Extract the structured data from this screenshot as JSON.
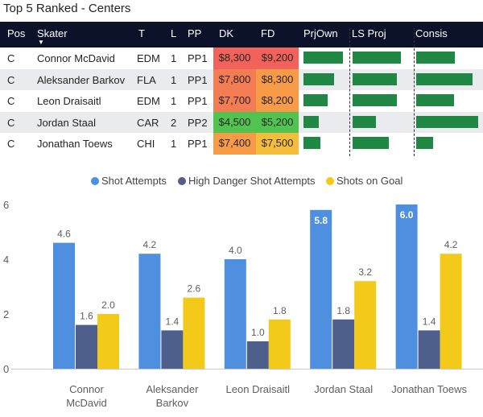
{
  "title": "Top 5 Ranked - Centers",
  "headers": {
    "pos": "Pos",
    "skater": "Skater",
    "team": "T",
    "line": "L",
    "pp": "PP",
    "dk": "DK",
    "fd": "FD",
    "prjown": "PrjOwn",
    "lsproj": "LS Proj",
    "consis": "Consis"
  },
  "rows": [
    {
      "pos": "C",
      "skater": "Connor McDavid",
      "team": "EDM",
      "line": "1",
      "pp": "PP1",
      "dk": "$8,300",
      "fd": "$9,200",
      "dk_color": "#f2625a",
      "fd_color": "#f2625a",
      "prjown": 0.85,
      "lsproj": 0.85,
      "consis": 0.62
    },
    {
      "pos": "C",
      "skater": "Aleksander Barkov",
      "team": "FLA",
      "line": "1",
      "pp": "PP1",
      "dk": "$7,800",
      "fd": "$8,300",
      "dk_color": "#f47c52",
      "fd_color": "#f79b46",
      "prjown": 0.65,
      "lsproj": 0.78,
      "consis": 0.9
    },
    {
      "pos": "C",
      "skater": "Leon Draisaitl",
      "team": "EDM",
      "line": "1",
      "pp": "PP1",
      "dk": "$7,700",
      "fd": "$8,200",
      "dk_color": "#f47c52",
      "fd_color": "#f79b46",
      "prjown": 0.52,
      "lsproj": 0.78,
      "consis": 0.6
    },
    {
      "pos": "C",
      "skater": "Jordan Staal",
      "team": "CAR",
      "line": "2",
      "pp": "PP2",
      "dk": "$4,500",
      "fd": "$5,200",
      "dk_color": "#51c351",
      "fd_color": "#51c351",
      "prjown": 0.33,
      "lsproj": 0.42,
      "consis": 0.99
    },
    {
      "pos": "C",
      "skater": "Jonathan Toews",
      "team": "CHI",
      "line": "1",
      "pp": "PP1",
      "dk": "$7,400",
      "fd": "$7,500",
      "dk_color": "#f79b46",
      "fd_color": "#f5bd3c",
      "prjown": 0.37,
      "lsproj": 0.64,
      "consis": 0.27
    }
  ],
  "colors": {
    "attempts": "#4f8fe0",
    "danger": "#4f5f8c",
    "goal": "#f3ca1a",
    "ownership_bar": "#208744",
    "header_bg": "#0b1229"
  },
  "chart_data": {
    "type": "bar",
    "categories": [
      "Connor McDavid",
      "Aleksander Barkov",
      "Leon Draisaitl",
      "Jordan Staal",
      "Jonathan Toews"
    ],
    "category_lines": [
      [
        "Connor",
        "McDavid"
      ],
      [
        "Aleksander",
        "Barkov"
      ],
      [
        "Leon Draisaitl"
      ],
      [
        "Jordan Staal"
      ],
      [
        "Jonathan Toews"
      ]
    ],
    "series": [
      {
        "name": "Shot Attempts",
        "values": [
          4.6,
          4.2,
          4.0,
          5.8,
          6.0
        ],
        "labels": [
          "4.6",
          "4.2",
          "4.0",
          "5.8",
          "6.0"
        ],
        "label_inside": [
          false,
          false,
          false,
          true,
          true
        ]
      },
      {
        "name": "High Danger Shot Attempts",
        "values": [
          1.6,
          1.4,
          1.0,
          1.8,
          1.4
        ],
        "labels": [
          "1.6",
          "1.4",
          "1.0",
          "1.8",
          "1.4"
        ],
        "label_inside": [
          false,
          false,
          false,
          false,
          false
        ]
      },
      {
        "name": "Shots on Goal",
        "values": [
          2.0,
          2.6,
          1.8,
          3.2,
          4.2
        ],
        "labels": [
          "2.0",
          "2.6",
          "1.8",
          "3.2",
          "4.2"
        ],
        "label_inside": [
          false,
          false,
          false,
          false,
          false
        ]
      }
    ],
    "yticks": [
      "0",
      "2",
      "4",
      "6"
    ],
    "ylim": [
      0,
      6
    ],
    "legend_position": "top-center",
    "xlabel": "",
    "ylabel": "",
    "title": ""
  }
}
